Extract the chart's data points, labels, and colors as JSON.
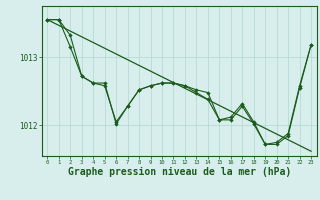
{
  "background_color": "#d8eeed",
  "grid_color": "#b0d8d0",
  "line_color": "#1a5c1a",
  "xlabel": "Graphe pression niveau de la mer (hPa)",
  "xlabel_fontsize": 7,
  "tick_label_color": "#1a5c1a",
  "ylim": [
    1011.55,
    1013.75
  ],
  "xlim": [
    -0.5,
    23.5
  ],
  "yticks": [
    1012,
    1013
  ],
  "xticks": [
    0,
    1,
    2,
    3,
    4,
    5,
    6,
    7,
    8,
    9,
    10,
    11,
    12,
    13,
    14,
    15,
    16,
    17,
    18,
    19,
    20,
    21,
    22,
    23
  ],
  "series1": [
    1013.55,
    1013.55,
    1013.15,
    1012.72,
    1012.62,
    1012.62,
    1012.02,
    1012.28,
    1012.52,
    1012.58,
    1012.62,
    1012.62,
    1012.58,
    1012.52,
    1012.48,
    1012.08,
    1012.08,
    1012.28,
    1012.02,
    1011.72,
    1011.72,
    1011.85,
    1012.55,
    1013.18
  ],
  "series2": [
    1013.55,
    1013.55,
    1013.32,
    1012.72,
    1012.62,
    1012.58,
    1012.05,
    1012.28,
    1012.52,
    1012.58,
    1012.62,
    1012.62,
    1012.58,
    1012.48,
    1012.38,
    1012.08,
    1012.12,
    1012.32,
    1012.05,
    1011.72,
    1011.75,
    1011.88,
    1012.58,
    1013.18
  ],
  "straight_line_x": [
    0,
    23
  ],
  "straight_line_y": [
    1013.55,
    1011.62
  ]
}
